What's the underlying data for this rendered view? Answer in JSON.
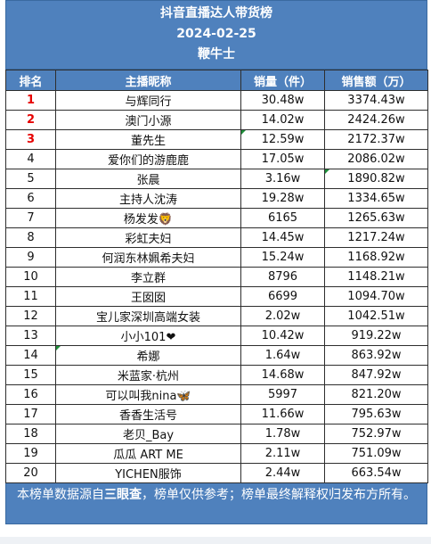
{
  "header": {
    "title": "抖音直播达人带货榜",
    "date": "2024-02-25",
    "source": "鞭牛士"
  },
  "table": {
    "columns": [
      "排名",
      "主播昵称",
      "销量（件）",
      "销售额（万）"
    ],
    "rows": [
      {
        "rank": "1",
        "name": "与辉同行",
        "sales": "30.48w",
        "revenue": "3374.43w"
      },
      {
        "rank": "2",
        "name": "澳门小源",
        "sales": "14.02w",
        "revenue": "2424.26w"
      },
      {
        "rank": "3",
        "name": "董先生",
        "sales": "12.59w",
        "revenue": "2172.37w"
      },
      {
        "rank": "4",
        "name": "爱你们的游鹿鹿",
        "sales": "17.05w",
        "revenue": "2086.02w"
      },
      {
        "rank": "5",
        "name": "张晨",
        "sales": "3.16w",
        "revenue": "1890.82w"
      },
      {
        "rank": "6",
        "name": "主持人沈涛",
        "sales": "19.28w",
        "revenue": "1334.65w"
      },
      {
        "rank": "7",
        "name": "杨发发🦁",
        "sales": "6165",
        "revenue": "1265.63w"
      },
      {
        "rank": "8",
        "name": "彩虹夫妇",
        "sales": "14.45w",
        "revenue": "1217.24w"
      },
      {
        "rank": "9",
        "name": "何润东林姵希夫妇",
        "sales": "15.24w",
        "revenue": "1168.92w"
      },
      {
        "rank": "10",
        "name": "李立群",
        "sales": "8796",
        "revenue": "1148.21w"
      },
      {
        "rank": "11",
        "name": "王囡囡",
        "sales": "6699",
        "revenue": "1094.70w"
      },
      {
        "rank": "12",
        "name": "宝儿家深圳高端女装",
        "sales": "2.02w",
        "revenue": "1042.51w"
      },
      {
        "rank": "13",
        "name": "小小101❤",
        "sales": "10.42w",
        "revenue": "919.22w"
      },
      {
        "rank": "14",
        "name": "希娜",
        "sales": "1.64w",
        "revenue": "863.92w"
      },
      {
        "rank": "15",
        "name": "米蓝家·杭州",
        "sales": "14.68w",
        "revenue": "847.92w"
      },
      {
        "rank": "16",
        "name": "可以叫我nina🦋",
        "sales": "5997",
        "revenue": "821.20w"
      },
      {
        "rank": "17",
        "name": "香香生活号",
        "sales": "11.66w",
        "revenue": "795.63w"
      },
      {
        "rank": "18",
        "name": "老贝_Bay",
        "sales": "1.78w",
        "revenue": "752.97w"
      },
      {
        "rank": "19",
        "name": "瓜瓜 ART ME",
        "sales": "2.11w",
        "revenue": "751.09w"
      },
      {
        "rank": "20",
        "name": "YICHEN服饰",
        "sales": "2.44w",
        "revenue": "663.54w"
      }
    ]
  },
  "footer": {
    "text_before": "本榜单数据源自",
    "text_bold": "三眼查",
    "text_after": "，榜单仅供参考；榜单最终解释权归发布方所有。"
  },
  "colors": {
    "header_bg": "#4f81bd",
    "top_rank_text": "#e60000",
    "cell_marker": "#1f8f3a"
  }
}
